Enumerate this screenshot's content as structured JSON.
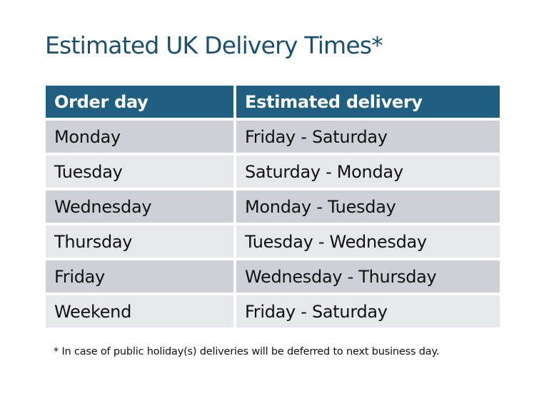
{
  "title": "Estimated UK Delivery Times*",
  "table": {
    "headers": [
      "Order day",
      "Estimated delivery"
    ],
    "rows": [
      [
        "Monday",
        "Friday - Saturday"
      ],
      [
        "Tuesday",
        "Saturday - Monday"
      ],
      [
        "Wednesday",
        "Monday - Tuesday"
      ],
      [
        "Thursday",
        "Tuesday - Wednesday"
      ],
      [
        "Friday",
        "Wednesday - Thursday"
      ],
      [
        "Weekend",
        "Friday - Saturday"
      ]
    ]
  },
  "footnote": "* In case of public holiday(s) deliveries will be deferred to next business day.",
  "colors": {
    "header": "#1F6082",
    "title": "#1B4F6E",
    "row_dark": "#CDD1D7",
    "row_light": "#E6E8EB"
  }
}
